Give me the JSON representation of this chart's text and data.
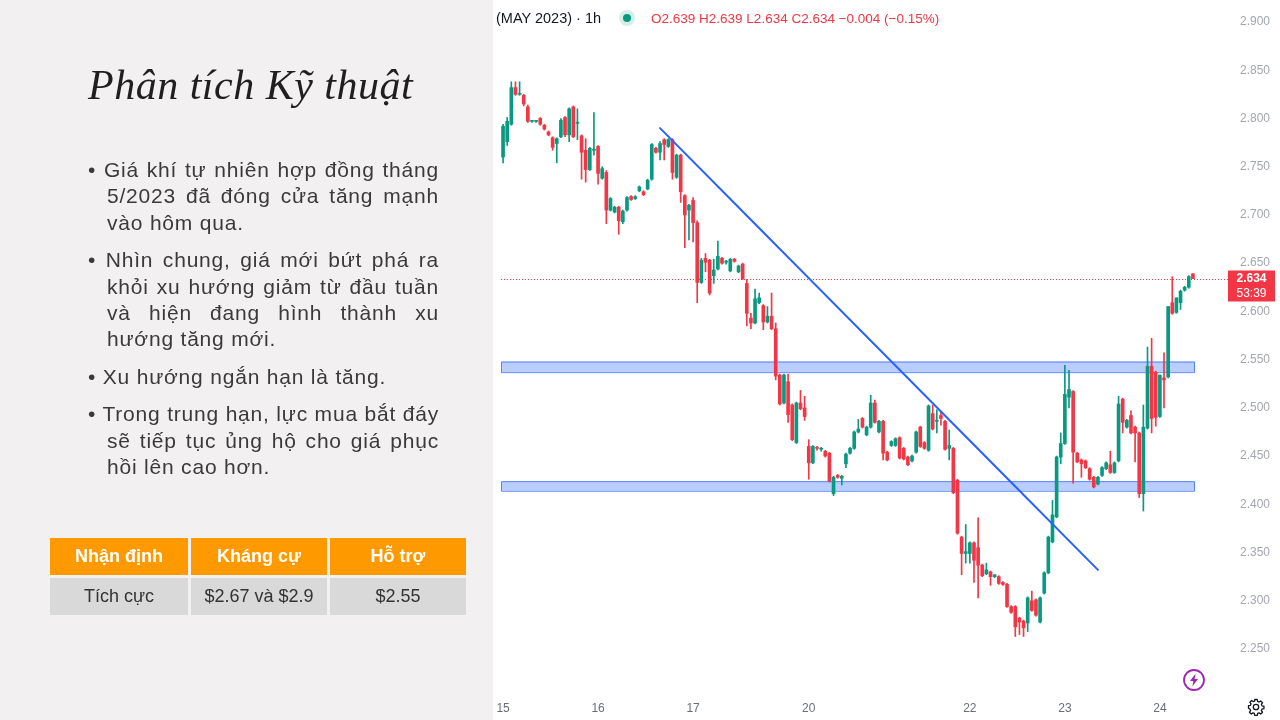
{
  "chart_data": [
    {
      "type": "other",
      "title": "Phân tích Kỹ thuật",
      "annotations": [
        "• Giá khí tự nhiên hợp đồng tháng 5/2023 đã đóng cửa tăng mạnh vào hôm qua.",
        "• Nhìn chung, giá mới bứt phá ra khỏi xu hướng giảm từ đầu tuần và hiện đang hình thành xu hướng tăng mới.",
        "• Xu hướng ngắn hạn là tăng.",
        "• Trong trung hạn, lực mua bắt đáy sẽ tiếp tục ủng hộ cho giá phục hồi lên cao hơn.",
        "Nhận định",
        "Kháng cự",
        "Hỗ trợ",
        "Tích cực",
        "$2.67 và $2.9",
        "$2.55"
      ]
    },
    {
      "type": "candlestick",
      "title": "(MAY 2023) · 1h",
      "annotations": [
        "O2.639 H2.639 L2.634 C2.634 −0.004 (−0.15%)"
      ],
      "categories": [
        "15",
        null,
        null,
        null,
        null,
        null,
        null,
        null,
        null,
        null,
        null,
        null,
        null,
        null,
        null,
        null,
        null,
        null,
        null,
        null,
        null,
        null,
        null,
        "16",
        null,
        null,
        null,
        null,
        null,
        null,
        null,
        null,
        null,
        null,
        null,
        null,
        null,
        null,
        null,
        null,
        null,
        null,
        null,
        null,
        null,
        null,
        "17",
        null,
        null,
        null,
        null,
        null,
        null,
        null,
        null,
        null,
        null,
        null,
        null,
        null,
        null,
        null,
        null,
        null,
        null,
        null,
        null,
        null,
        null,
        null,
        null,
        null,
        null,
        null,
        "20",
        null,
        null,
        null,
        null,
        null,
        null,
        null,
        null,
        null,
        null,
        null,
        null,
        null,
        null,
        null,
        null,
        null,
        null,
        null,
        null,
        null,
        null,
        null,
        null,
        null,
        null,
        null,
        null,
        null,
        null,
        null,
        null,
        null,
        null,
        null,
        null,
        null,
        null,
        "22",
        null,
        null,
        null,
        null,
        null,
        null,
        null,
        null,
        null,
        null,
        null,
        null,
        null,
        null,
        null,
        null,
        null,
        null,
        null,
        null,
        null,
        null,
        "23",
        null,
        null,
        null,
        null,
        null,
        null,
        null,
        null,
        null,
        null,
        null,
        null,
        null,
        null,
        null,
        null,
        null,
        null,
        null,
        null,
        null,
        null,
        "24",
        null,
        null,
        null,
        null,
        null,
        null,
        null,
        null
      ],
      "ylim": [
        2.25,
        2.9
      ],
      "yticks": [
        {
          "value": 2.25,
          "label": "2.250"
        },
        {
          "value": 2.3,
          "label": "2.300"
        },
        {
          "value": 2.35,
          "label": "2.350"
        },
        {
          "value": 2.4,
          "label": "2.400"
        },
        {
          "value": 2.45,
          "label": "2.450"
        },
        {
          "value": 2.5,
          "label": "2.500"
        },
        {
          "value": 2.55,
          "label": "2.550"
        },
        {
          "value": 2.6,
          "label": "2.600"
        },
        {
          "value": 2.65,
          "label": "2.650"
        },
        {
          "value": 2.7,
          "label": "2.700"
        },
        {
          "value": 2.75,
          "label": "2.750"
        },
        {
          "value": 2.8,
          "label": "2.800"
        },
        {
          "value": 2.85,
          "label": "2.850"
        },
        {
          "value": 2.9,
          "label": "2.900"
        }
      ],
      "series": [
        {
          "ohlc": [
            [
              2.76,
              2.794,
              2.754,
              2.792
            ],
            [
              2.776,
              2.801,
              2.772,
              2.797
            ],
            [
              2.794,
              2.838,
              2.793,
              2.832
            ],
            [
              2.832,
              2.838,
              2.824,
              2.825
            ],
            [
              2.825,
              2.838,
              2.824,
              2.825
            ],
            [
              2.824,
              2.825,
              2.813,
              2.815
            ],
            [
              2.812,
              2.814,
              2.796,
              2.797
            ],
            [
              2.797,
              2.798,
              2.796,
              2.797
            ],
            [
              2.797,
              2.798,
              2.796,
              2.797
            ],
            [
              2.8,
              2.801,
              2.793,
              2.794
            ],
            [
              2.793,
              2.794,
              2.788,
              2.789
            ],
            [
              2.786,
              2.787,
              2.782,
              2.783
            ],
            [
              2.78,
              2.781,
              2.767,
              2.77
            ],
            [
              2.774,
              2.78,
              2.754,
              2.779
            ],
            [
              2.781,
              2.8,
              2.78,
              2.798
            ],
            [
              2.801,
              2.802,
              2.781,
              2.783
            ],
            [
              2.783,
              2.811,
              2.776,
              2.81
            ],
            [
              2.812,
              2.813,
              2.78,
              2.781
            ],
            [
              2.795,
              2.81,
              2.778,
              2.795
            ],
            [
              2.782,
              2.783,
              2.737,
              2.765
            ],
            [
              2.767,
              2.779,
              2.734,
              2.747
            ],
            [
              2.747,
              2.77,
              2.746,
              2.769
            ],
            [
              2.767,
              2.806,
              2.762,
              2.767
            ],
            [
              2.771,
              2.772,
              2.732,
              2.743
            ],
            [
              2.738,
              2.75,
              2.737,
              2.748
            ],
            [
              2.744,
              2.746,
              2.691,
              2.705
            ],
            [
              2.705,
              2.718,
              2.704,
              2.717
            ],
            [
              2.703,
              2.709,
              2.702,
              2.708
            ],
            [
              2.708,
              2.709,
              2.68,
              2.694
            ],
            [
              2.693,
              2.705,
              2.691,
              2.704
            ],
            [
              2.705,
              2.719,
              2.704,
              2.718
            ],
            [
              2.719,
              2.72,
              2.715,
              2.716
            ],
            [
              2.717,
              2.72,
              2.716,
              2.719
            ],
            [
              2.725,
              2.73,
              2.724,
              2.729
            ],
            [
              2.724,
              2.725,
              2.72,
              2.721
            ],
            [
              2.727,
              2.737,
              2.726,
              2.736
            ],
            [
              2.737,
              2.774,
              2.736,
              2.773
            ],
            [
              2.769,
              2.77,
              2.764,
              2.765
            ],
            [
              2.765,
              2.776,
              2.757,
              2.774
            ],
            [
              2.778,
              2.779,
              2.757,
              2.773
            ],
            [
              2.771,
              2.779,
              2.77,
              2.778
            ],
            [
              2.778,
              2.779,
              2.737,
              2.744
            ],
            [
              2.739,
              2.763,
              2.738,
              2.762
            ],
            [
              2.762,
              2.763,
              2.713,
              2.724
            ],
            [
              2.72,
              2.721,
              2.666,
              2.7
            ],
            [
              2.705,
              2.711,
              2.674,
              2.71
            ],
            [
              2.715,
              2.718,
              2.672,
              2.692
            ],
            [
              2.692,
              2.694,
              2.609,
              2.63
            ],
            [
              2.63,
              2.655,
              2.629,
              2.653
            ],
            [
              2.655,
              2.66,
              2.641,
              2.651
            ],
            [
              2.653,
              2.654,
              2.617,
              2.619
            ],
            [
              2.637,
              2.654,
              2.629,
              2.643
            ],
            [
              2.644,
              2.673,
              2.643,
              2.657
            ],
            [
              2.655,
              2.656,
              2.649,
              2.65
            ],
            [
              2.651,
              2.653,
              2.649,
              2.651
            ],
            [
              2.642,
              2.655,
              2.641,
              2.654
            ],
            [
              2.654,
              2.655,
              2.651,
              2.652
            ],
            [
              2.641,
              2.648,
              2.64,
              2.647
            ],
            [
              2.649,
              2.65,
              2.633,
              2.634
            ],
            [
              2.629,
              2.633,
              2.585,
              2.598
            ],
            [
              2.593,
              2.598,
              2.582,
              2.588
            ],
            [
              2.588,
              2.623,
              2.587,
              2.613
            ],
            [
              2.609,
              2.619,
              2.608,
              2.614
            ],
            [
              2.606,
              2.607,
              2.581,
              2.589
            ],
            [
              2.589,
              2.605,
              2.588,
              2.595
            ],
            [
              2.595,
              2.619,
              2.581,
              2.582
            ],
            [
              2.582,
              2.588,
              2.529,
              2.533
            ],
            [
              2.534,
              2.535,
              2.503,
              2.504
            ],
            [
              2.505,
              2.535,
              2.504,
              2.534
            ],
            [
              2.527,
              2.535,
              2.485,
              2.493
            ],
            [
              2.503,
              2.504,
              2.466,
              2.467
            ],
            [
              2.464,
              2.506,
              2.463,
              2.505
            ],
            [
              2.505,
              2.518,
              2.498,
              2.499
            ],
            [
              2.5,
              2.512,
              2.487,
              2.491
            ],
            [
              2.46,
              2.467,
              2.426,
              2.443
            ],
            [
              2.443,
              2.461,
              2.442,
              2.46
            ],
            [
              2.458,
              2.46,
              2.456,
              2.458
            ],
            [
              2.457,
              2.459,
              2.455,
              2.457
            ],
            [
              2.455,
              2.456,
              2.449,
              2.45
            ],
            [
              2.453,
              2.454,
              2.423,
              2.424
            ],
            [
              2.411,
              2.429,
              2.409,
              2.428
            ],
            [
              2.43,
              2.431,
              2.427,
              2.428
            ],
            [
              2.427,
              2.43,
              2.42,
              2.429
            ],
            [
              2.442,
              2.453,
              2.438,
              2.452
            ],
            [
              2.453,
              2.459,
              2.452,
              2.458
            ],
            [
              2.458,
              2.476,
              2.457,
              2.475
            ],
            [
              2.475,
              2.488,
              2.474,
              2.478
            ],
            [
              2.489,
              2.49,
              2.479,
              2.48
            ],
            [
              2.472,
              2.481,
              2.471,
              2.48
            ],
            [
              2.48,
              2.513,
              2.479,
              2.505
            ],
            [
              2.505,
              2.508,
              2.484,
              2.485
            ],
            [
              2.475,
              2.487,
              2.474,
              2.486
            ],
            [
              2.486,
              2.487,
              2.446,
              2.453
            ],
            [
              2.454,
              2.455,
              2.445,
              2.446
            ],
            [
              2.461,
              2.466,
              2.46,
              2.465
            ],
            [
              2.461,
              2.469,
              2.46,
              2.468
            ],
            [
              2.469,
              2.47,
              2.447,
              2.448
            ],
            [
              2.458,
              2.459,
              2.446,
              2.447
            ],
            [
              2.449,
              2.45,
              2.44,
              2.441
            ],
            [
              2.445,
              2.451,
              2.444,
              2.45
            ],
            [
              2.454,
              2.476,
              2.453,
              2.475
            ],
            [
              2.48,
              2.481,
              2.459,
              2.46
            ],
            [
              2.464,
              2.465,
              2.457,
              2.458
            ],
            [
              2.456,
              2.503,
              2.455,
              2.502
            ],
            [
              2.494,
              2.503,
              2.477,
              2.478
            ],
            [
              2.486,
              2.498,
              2.474,
              2.486
            ],
            [
              2.492,
              2.496,
              2.482,
              2.489
            ],
            [
              2.486,
              2.487,
              2.456,
              2.457
            ],
            [
              2.458,
              2.477,
              2.446,
              2.461
            ],
            [
              2.458,
              2.459,
              2.411,
              2.412
            ],
            [
              2.425,
              2.426,
              2.369,
              2.37
            ],
            [
              2.366,
              2.367,
              2.327,
              2.349
            ],
            [
              2.349,
              2.379,
              2.339,
              2.351
            ],
            [
              2.349,
              2.361,
              2.339,
              2.36
            ],
            [
              2.36,
              2.361,
              2.319,
              2.342
            ],
            [
              2.355,
              2.386,
              2.303,
              2.337
            ],
            [
              2.337,
              2.338,
              2.325,
              2.326
            ],
            [
              2.328,
              2.339,
              2.327,
              2.332
            ],
            [
              2.33,
              2.331,
              2.316,
              2.325
            ],
            [
              2.325,
              2.327,
              2.324,
              2.327
            ],
            [
              2.325,
              2.326,
              2.317,
              2.318
            ],
            [
              2.319,
              2.32,
              2.316,
              2.317
            ],
            [
              2.317,
              2.318,
              2.293,
              2.294
            ],
            [
              2.294,
              2.295,
              2.287,
              2.288
            ],
            [
              2.294,
              2.295,
              2.263,
              2.273
            ],
            [
              2.282,
              2.283,
              2.265,
              2.278
            ],
            [
              2.279,
              2.28,
              2.263,
              2.272
            ],
            [
              2.277,
              2.304,
              2.268,
              2.303
            ],
            [
              2.3,
              2.31,
              2.289,
              2.29
            ],
            [
              2.301,
              2.302,
              2.284,
              2.285
            ],
            [
              2.278,
              2.304,
              2.277,
              2.303
            ],
            [
              2.308,
              2.33,
              2.307,
              2.329
            ],
            [
              2.329,
              2.367,
              2.328,
              2.366
            ],
            [
              2.361,
              2.404,
              2.36,
              2.389
            ],
            [
              2.387,
              2.45,
              2.386,
              2.449
            ],
            [
              2.449,
              2.474,
              2.442,
              2.463
            ],
            [
              2.463,
              2.544,
              2.462,
              2.514
            ],
            [
              2.511,
              2.539,
              2.5,
              2.519
            ],
            [
              2.517,
              2.518,
              2.422,
              2.454
            ],
            [
              2.453,
              2.454,
              2.443,
              2.444
            ],
            [
              2.446,
              2.447,
              2.428,
              2.442
            ],
            [
              2.445,
              2.446,
              2.437,
              2.438
            ],
            [
              2.437,
              2.438,
              2.425,
              2.426
            ],
            [
              2.428,
              2.429,
              2.417,
              2.418
            ],
            [
              2.421,
              2.429,
              2.42,
              2.428
            ],
            [
              2.43,
              2.439,
              2.429,
              2.438
            ],
            [
              2.437,
              2.444,
              2.436,
              2.443
            ],
            [
              2.441,
              2.455,
              2.432,
              2.433
            ],
            [
              2.433,
              2.444,
              2.432,
              2.443
            ],
            [
              2.445,
              2.512,
              2.444,
              2.504
            ],
            [
              2.509,
              2.51,
              2.474,
              2.485
            ],
            [
              2.48,
              2.488,
              2.479,
              2.487
            ],
            [
              2.492,
              2.497,
              2.473,
              2.474
            ],
            [
              2.48,
              2.481,
              2.444,
              2.474
            ],
            [
              2.474,
              2.475,
              2.407,
              2.411
            ],
            [
              2.411,
              2.503,
              2.393,
              2.48
            ],
            [
              2.479,
              2.563,
              2.478,
              2.543
            ],
            [
              2.543,
              2.572,
              2.474,
              2.489
            ],
            [
              2.537,
              2.538,
              2.481,
              2.49
            ],
            [
              2.491,
              2.534,
              2.49,
              2.534
            ],
            [
              2.531,
              2.557,
              2.5,
              2.529
            ],
            [
              2.532,
              2.605,
              2.531,
              2.605
            ],
            [
              2.609,
              2.636,
              2.597,
              2.598
            ],
            [
              2.599,
              2.614,
              2.598,
              2.614
            ],
            [
              2.609,
              2.622,
              2.602,
              2.621
            ],
            [
              2.622,
              2.626,
              2.621,
              2.625
            ],
            [
              2.625,
              2.637,
              2.624,
              2.636
            ],
            [
              2.639,
              2.639,
              2.634,
              2.634
            ]
          ],
          "colors": [
            "#089981",
            "#089981",
            "#089981",
            "#f23645",
            "#089981",
            "#f23645",
            "#f23645",
            "#089981",
            "#089981",
            "#f23645",
            "#f23645",
            "#f23645",
            "#f23645",
            "#089981",
            "#089981",
            "#f23645",
            "#089981",
            "#f23645",
            "#089981",
            "#f23645",
            "#f23645",
            "#089981",
            "#089981",
            "#f23645",
            "#089981",
            "#f23645",
            "#089981",
            "#089981",
            "#f23645",
            "#089981",
            "#089981",
            "#f23645",
            "#089981",
            "#089981",
            "#f23645",
            "#089981",
            "#089981",
            "#f23645",
            "#089981",
            "#f23645",
            "#089981",
            "#f23645",
            "#089981",
            "#f23645",
            "#f23645",
            "#089981",
            "#f23645",
            "#f23645",
            "#089981",
            "#f23645",
            "#f23645",
            "#089981",
            "#089981",
            "#f23645",
            "#089981",
            "#089981",
            "#f23645",
            "#089981",
            "#f23645",
            "#f23645",
            "#f23645",
            "#089981",
            "#089981",
            "#f23645",
            "#089981",
            "#f23645",
            "#f23645",
            "#f23645",
            "#089981",
            "#f23645",
            "#f23645",
            "#089981",
            "#f23645",
            "#f23645",
            "#f23645",
            "#089981",
            "#f23645",
            "#089981",
            "#f23645",
            "#f23645",
            "#089981",
            "#f23645",
            "#089981",
            "#089981",
            "#089981",
            "#089981",
            "#089981",
            "#f23645",
            "#089981",
            "#089981",
            "#f23645",
            "#089981",
            "#f23645",
            "#f23645",
            "#089981",
            "#089981",
            "#f23645",
            "#f23645",
            "#f23645",
            "#089981",
            "#089981",
            "#f23645",
            "#f23645",
            "#089981",
            "#f23645",
            "#089981",
            "#f23645",
            "#f23645",
            "#089981",
            "#f23645",
            "#f23645",
            "#f23645",
            "#089981",
            "#089981",
            "#f23645",
            "#f23645",
            "#f23645",
            "#089981",
            "#f23645",
            "#089981",
            "#f23645",
            "#f23645",
            "#f23645",
            "#f23645",
            "#f23645",
            "#f23645",
            "#f23645",
            "#089981",
            "#f23645",
            "#f23645",
            "#089981",
            "#089981",
            "#089981",
            "#089981",
            "#089981",
            "#089981",
            "#089981",
            "#089981",
            "#f23645",
            "#f23645",
            "#f23645",
            "#f23645",
            "#f23645",
            "#f23645",
            "#089981",
            "#089981",
            "#089981",
            "#f23645",
            "#089981",
            "#089981",
            "#f23645",
            "#089981",
            "#f23645",
            "#f23645",
            "#f23645",
            "#089981",
            "#089981",
            "#f23645",
            "#f23645",
            "#089981",
            "#f23645",
            "#089981",
            "#f23645",
            "#089981",
            "#089981",
            "#089981",
            "#089981",
            "#f23645"
          ]
        },
        {
          "type": "line",
          "color": "#2962ff",
          "values": [
            null,
            null,
            null,
            null,
            null,
            null,
            null,
            null,
            null,
            null,
            null,
            null,
            null,
            null,
            null,
            null,
            null,
            null,
            null,
            null,
            null,
            null,
            null,
            null,
            null,
            null,
            null,
            null,
            null,
            null,
            null,
            null,
            null,
            null,
            null,
            null,
            null,
            null,
            2.79,
            null,
            null,
            null,
            null,
            null,
            null,
            null,
            null,
            null,
            null,
            null,
            null,
            null,
            null,
            null,
            null,
            null,
            null,
            null,
            null,
            null,
            null,
            null,
            null,
            null,
            null,
            null,
            null,
            null,
            null,
            null,
            null,
            null,
            null,
            null,
            null,
            null,
            null,
            null,
            null,
            null,
            null,
            null,
            null,
            null,
            null,
            null,
            null,
            null,
            null,
            null,
            null,
            null,
            null,
            null,
            null,
            null,
            null,
            null,
            null,
            null,
            null,
            null,
            null,
            null,
            null,
            null,
            null,
            null,
            null,
            null,
            null,
            null,
            null,
            null,
            null,
            null,
            null,
            null,
            null,
            null,
            null,
            null,
            null,
            null,
            null,
            null,
            null,
            null,
            null,
            null,
            null,
            null,
            null,
            null,
            null,
            null,
            null,
            null,
            null,
            null,
            null,
            null,
            null,
            null,
            2.332,
            null,
            null,
            null,
            null,
            null,
            null,
            null,
            null,
            null,
            null,
            null,
            null,
            null,
            null,
            null,
            null,
            null,
            null,
            null,
            null,
            null,
            null,
            null
          ]
        }
      ],
      "bands": [
        {
          "axis": "y",
          "from": 2.537,
          "to": 2.548,
          "color": "#2962ff"
        },
        {
          "axis": "y",
          "from": 2.414,
          "to": 2.424,
          "color": "#2962ff"
        }
      ],
      "ref_lines": [
        {
          "axis": "y",
          "value": 2.634,
          "label": "2.634\n53:39",
          "color": "#f23645",
          "line_style": "dotted"
        }
      ]
    }
  ]
}
